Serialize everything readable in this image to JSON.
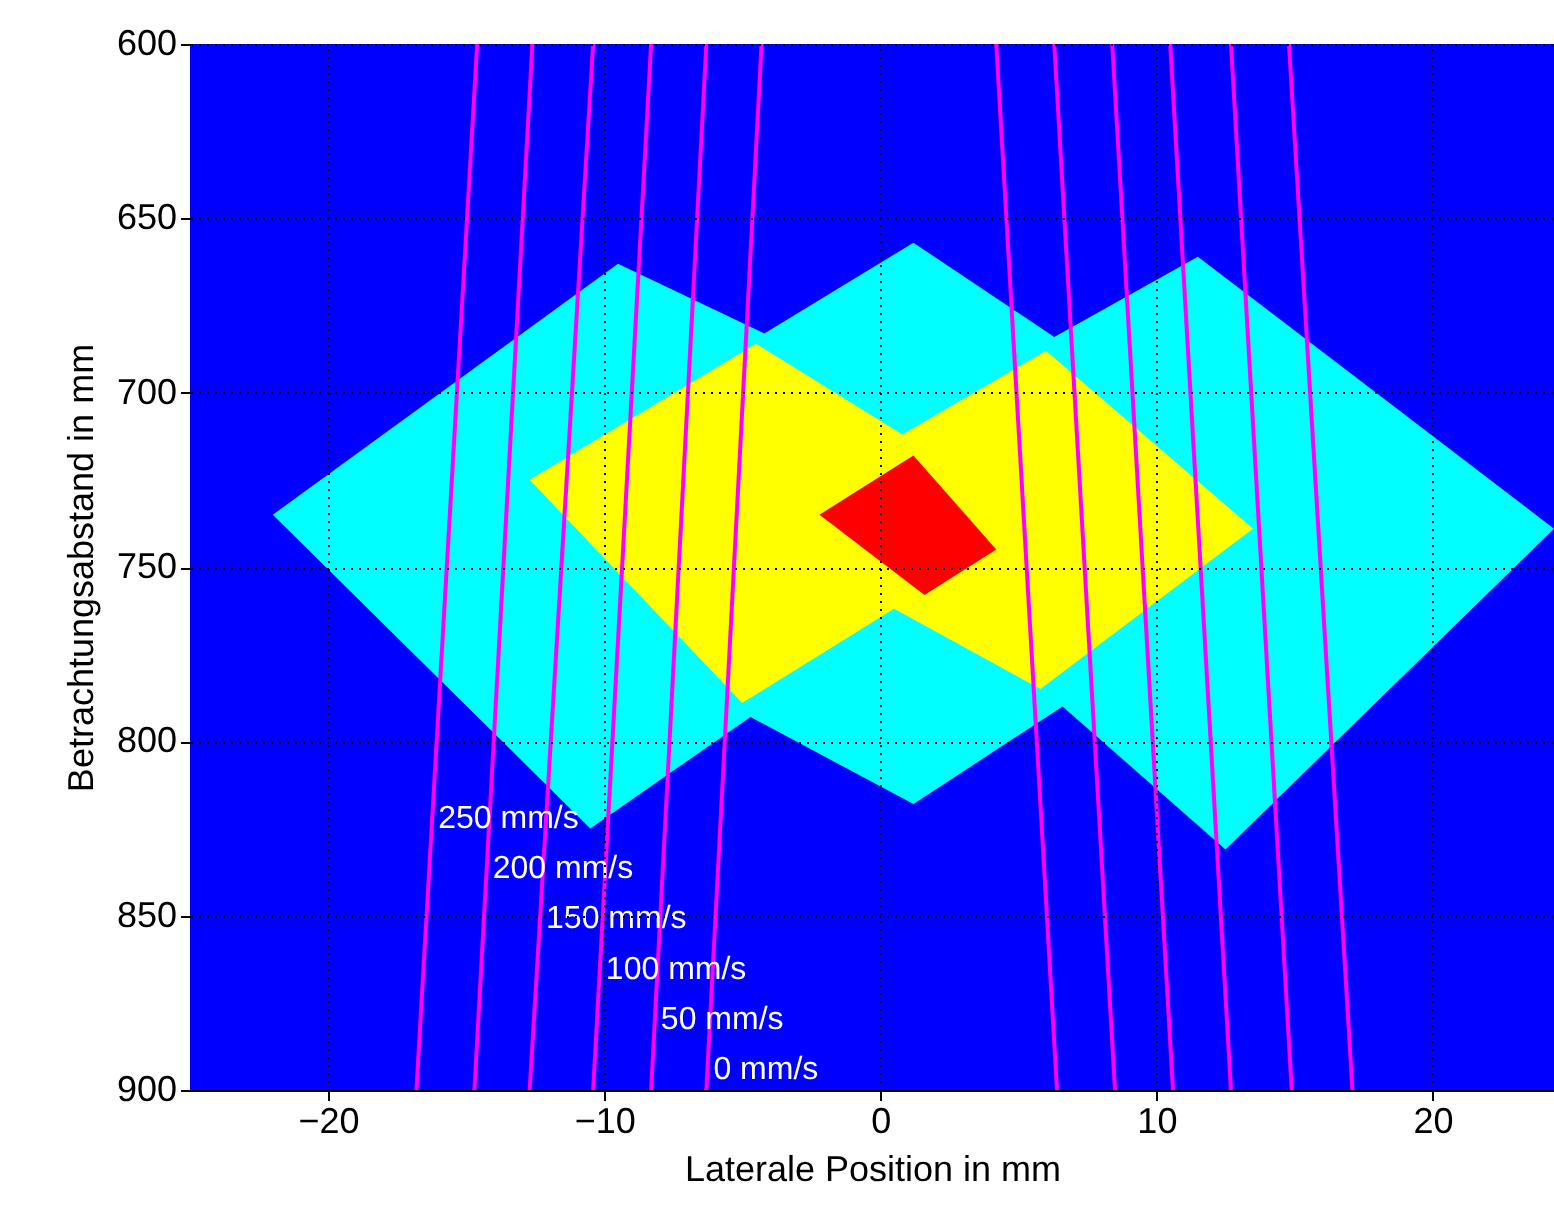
{
  "chart_data": {
    "type": "line",
    "xlabel": "Laterale Position in mm",
    "ylabel": "Betrachtungsabstand in mm",
    "xlim": [
      -25,
      24.4
    ],
    "ylim": [
      900,
      600
    ],
    "xticks": [
      -20,
      -10,
      0,
      10,
      20
    ],
    "yticks": [
      600,
      650,
      700,
      750,
      800,
      850,
      900
    ],
    "grid": true,
    "bands": [
      {
        "axis": "x",
        "from": -25,
        "to": 24.4,
        "color": "#0000ff"
      }
    ],
    "series": [
      {
        "type": "area",
        "color": "#00ffff",
        "x": [
          -22,
          -9.5,
          -4.2,
          1.2,
          6.3,
          11.5,
          24.4,
          12.5,
          6.6,
          1.2,
          -4.7,
          -10.5
        ],
        "values": [
          735,
          663,
          683,
          657,
          684,
          661,
          739,
          831,
          790,
          818,
          793,
          825
        ]
      },
      {
        "type": "area",
        "color": "#ffff00",
        "x": [
          -12.7,
          -4.5,
          0.8,
          6,
          13.5,
          5.8,
          0.5,
          -5
        ],
        "values": [
          725,
          686,
          712,
          688,
          739,
          785,
          762,
          789
        ]
      },
      {
        "type": "area",
        "color": "#ff0000",
        "x": [
          -2.2,
          1.2,
          4.2,
          1.6
        ],
        "values": [
          735,
          718,
          745,
          758
        ]
      },
      {
        "name": "250 mm/s",
        "color": "#ff00ff",
        "x": [
          -16.8,
          -14.6
        ],
        "values": [
          900,
          600
        ]
      },
      {
        "name": "200 mm/s",
        "color": "#ff00ff",
        "x": [
          -14.7,
          -12.6
        ],
        "values": [
          900,
          600
        ]
      },
      {
        "name": "150 mm/s",
        "color": "#ff00ff",
        "x": [
          -12.7,
          -10.4
        ],
        "values": [
          900,
          600
        ]
      },
      {
        "name": "100 mm/s",
        "color": "#ff00ff",
        "x": [
          -10.4,
          -8.3
        ],
        "values": [
          900,
          600
        ]
      },
      {
        "name": "50 mm/s",
        "color": "#ff00ff",
        "x": [
          -8.3,
          -6.3
        ],
        "values": [
          900,
          600
        ]
      },
      {
        "name": "0 mm/s",
        "color": "#ff00ff",
        "x": [
          -6.3,
          -4.3
        ],
        "values": [
          900,
          600
        ]
      },
      {
        "color": "#ff00ff",
        "x": [
          6.4,
          4.2
        ],
        "values": [
          900,
          600
        ]
      },
      {
        "color": "#ff00ff",
        "x": [
          8.5,
          6.3
        ],
        "values": [
          900,
          600
        ]
      },
      {
        "color": "#ff00ff",
        "x": [
          10.6,
          8.4
        ],
        "values": [
          900,
          600
        ]
      },
      {
        "color": "#ff00ff",
        "x": [
          12.7,
          10.5
        ],
        "values": [
          900,
          600
        ]
      },
      {
        "color": "#ff00ff",
        "x": [
          14.9,
          12.7
        ],
        "values": [
          900,
          600
        ]
      },
      {
        "color": "#ff00ff",
        "x": [
          17.1,
          14.8
        ],
        "values": [
          900,
          600
        ]
      }
    ]
  }
}
